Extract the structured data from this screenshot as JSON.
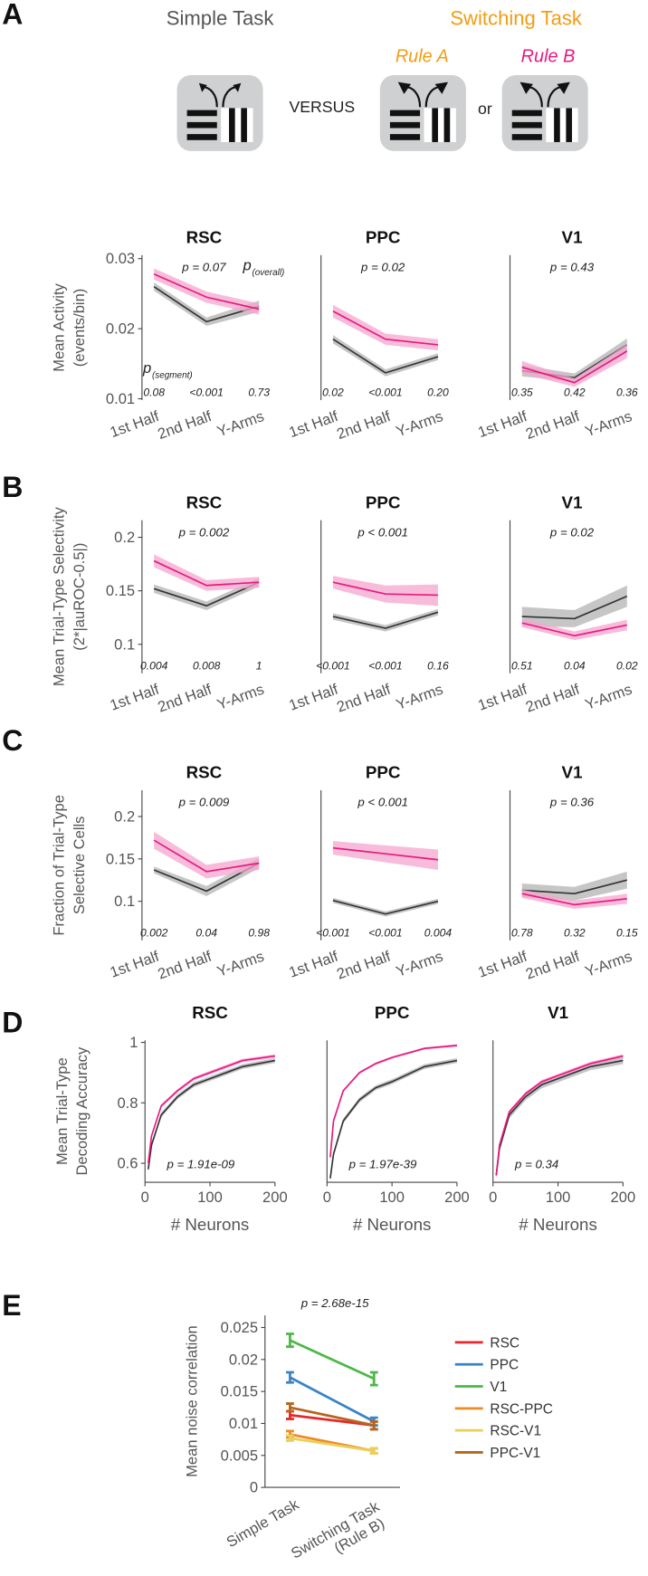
{
  "panel_labels": [
    "A",
    "B",
    "C",
    "D",
    "E"
  ],
  "schematic": {
    "simple": "Simple Task",
    "switching": "Switching Task",
    "rule_a": "Rule A",
    "rule_b": "Rule B",
    "versus": "VERSUS",
    "or": "or"
  },
  "chart_data": [
    {
      "type": "line",
      "title": "RSC",
      "ylabel": [
        "Mean Activity",
        "(events/bin)"
      ],
      "categories": [
        "1st Half",
        "2nd Half",
        "Y-Arms"
      ],
      "series": [
        {
          "color": "#333333",
          "band_color": "#b3b3b3",
          "values": [
            0.026,
            0.021,
            0.0232
          ],
          "error": [
            0.0006,
            0.0006,
            0.0008
          ]
        },
        {
          "color": "#e6197f",
          "band_color": "#f5a6cf",
          "values": [
            0.0278,
            0.0245,
            0.0228
          ],
          "error": [
            0.0008,
            0.0008,
            0.0008
          ]
        }
      ],
      "ylim": [
        0.0098,
        0.0305
      ],
      "yticks": [
        0.01,
        0.02,
        0.03
      ],
      "p_overall": "p = 0.07",
      "p_segments": [
        "0.08",
        "<0.001",
        "0.73"
      ],
      "annotations": [
        {
          "text": "p",
          "sub": "(overall)"
        },
        {
          "text": "p",
          "sub": "(segment)"
        }
      ]
    },
    {
      "type": "line",
      "title": "PPC",
      "categories": [
        "1st Half",
        "2nd Half",
        "Y-Arms"
      ],
      "series": [
        {
          "color": "#333333",
          "band_color": "#b3b3b3",
          "values": [
            0.0185,
            0.0137,
            0.016
          ],
          "error": [
            0.0006,
            0.0005,
            0.0005
          ]
        },
        {
          "color": "#e6197f",
          "band_color": "#f5a6cf",
          "values": [
            0.0225,
            0.0185,
            0.0177
          ],
          "error": [
            0.0009,
            0.0008,
            0.0008
          ]
        }
      ],
      "ylim": [
        0.0098,
        0.0305
      ],
      "p_overall": "p = 0.02",
      "p_segments": [
        "0.02",
        "<0.001",
        "0.20"
      ]
    },
    {
      "type": "line",
      "title": "V1",
      "categories": [
        "1st Half",
        "2nd Half",
        "Y-Arms"
      ],
      "series": [
        {
          "color": "#333333",
          "band_color": "#b3b3b3",
          "values": [
            0.014,
            0.013,
            0.0177
          ],
          "error": [
            0.0008,
            0.0006,
            0.0009
          ]
        },
        {
          "color": "#e6197f",
          "band_color": "#f5a6cf",
          "values": [
            0.0145,
            0.0123,
            0.0168
          ],
          "error": [
            0.0009,
            0.0006,
            0.001
          ]
        }
      ],
      "ylim": [
        0.0098,
        0.0305
      ],
      "p_overall": "p = 0.43",
      "p_segments": [
        "0.35",
        "0.42",
        "0.36"
      ]
    },
    {
      "type": "line",
      "title": "RSC",
      "ylabel": [
        "Mean Trial-Type Selectivity",
        "(2*|auROC-0.5|)"
      ],
      "categories": [
        "1st Half",
        "2nd Half",
        "Y-Arms"
      ],
      "series": [
        {
          "color": "#333333",
          "band_color": "#b3b3b3",
          "values": [
            0.152,
            0.136,
            0.158
          ],
          "error": [
            0.004,
            0.004,
            0.004
          ]
        },
        {
          "color": "#e6197f",
          "band_color": "#f5a6cf",
          "values": [
            0.178,
            0.155,
            0.158
          ],
          "error": [
            0.006,
            0.005,
            0.005
          ]
        }
      ],
      "ylim": [
        0.073,
        0.216
      ],
      "yticks": [
        0.1,
        0.15,
        0.2
      ],
      "p_overall": "p = 0.002",
      "p_segments": [
        "0.004",
        "0.008",
        "1"
      ]
    },
    {
      "type": "line",
      "title": "PPC",
      "categories": [
        "1st Half",
        "2nd Half",
        "Y-Arms"
      ],
      "series": [
        {
          "color": "#333333",
          "band_color": "#b3b3b3",
          "values": [
            0.126,
            0.115,
            0.13
          ],
          "error": [
            0.003,
            0.003,
            0.003
          ]
        },
        {
          "color": "#e6197f",
          "band_color": "#f5a6cf",
          "values": [
            0.158,
            0.147,
            0.146
          ],
          "error": [
            0.006,
            0.008,
            0.01
          ]
        }
      ],
      "ylim": [
        0.073,
        0.216
      ],
      "p_overall": "p < 0.001",
      "p_segments": [
        "<0.001",
        "<0.001",
        "0.16"
      ]
    },
    {
      "type": "line",
      "title": "V1",
      "categories": [
        "1st Half",
        "2nd Half",
        "Y-Arms"
      ],
      "series": [
        {
          "color": "#333333",
          "band_color": "#b3b3b3",
          "values": [
            0.126,
            0.124,
            0.145
          ],
          "error": [
            0.009,
            0.008,
            0.01
          ]
        },
        {
          "color": "#e6197f",
          "band_color": "#f5a6cf",
          "values": [
            0.12,
            0.108,
            0.118
          ],
          "error": [
            0.004,
            0.004,
            0.005
          ]
        }
      ],
      "ylim": [
        0.073,
        0.216
      ],
      "p_overall": "p = 0.02",
      "p_segments": [
        "0.51",
        "0.04",
        "0.02"
      ]
    },
    {
      "type": "line",
      "title": "RSC",
      "ylabel": [
        "Fraction of Trial-Type",
        "Selective Cells"
      ],
      "categories": [
        "1st Half",
        "2nd Half",
        "Y-Arms"
      ],
      "series": [
        {
          "color": "#333333",
          "band_color": "#b3b3b3",
          "values": [
            0.137,
            0.112,
            0.145
          ],
          "error": [
            0.004,
            0.006,
            0.006
          ]
        },
        {
          "color": "#e6197f",
          "band_color": "#f5a6cf",
          "values": [
            0.172,
            0.135,
            0.145
          ],
          "error": [
            0.01,
            0.008,
            0.008
          ]
        }
      ],
      "ylim": [
        0.054,
        0.231
      ],
      "yticks": [
        0.1,
        0.15,
        0.2
      ],
      "p_overall": "p = 0.009",
      "p_segments": [
        "0.002",
        "0.04",
        "0.98"
      ]
    },
    {
      "type": "line",
      "title": "PPC",
      "categories": [
        "1st Half",
        "2nd Half",
        "Y-Arms"
      ],
      "series": [
        {
          "color": "#333333",
          "band_color": "#b3b3b3",
          "values": [
            0.101,
            0.085,
            0.1
          ],
          "error": [
            0.003,
            0.003,
            0.003
          ]
        },
        {
          "color": "#e6197f",
          "band_color": "#f5a6cf",
          "values": [
            0.163,
            0.156,
            0.149
          ],
          "error": [
            0.008,
            0.01,
            0.012
          ]
        }
      ],
      "ylim": [
        0.054,
        0.231
      ],
      "p_overall": "p < 0.001",
      "p_segments": [
        "<0.001",
        "<0.001",
        "0.004"
      ]
    },
    {
      "type": "line",
      "title": "V1",
      "categories": [
        "1st Half",
        "2nd Half",
        "Y-Arms"
      ],
      "series": [
        {
          "color": "#333333",
          "band_color": "#b3b3b3",
          "values": [
            0.113,
            0.109,
            0.125
          ],
          "error": [
            0.008,
            0.008,
            0.01
          ]
        },
        {
          "color": "#e6197f",
          "band_color": "#f5a6cf",
          "values": [
            0.109,
            0.096,
            0.103
          ],
          "error": [
            0.005,
            0.005,
            0.006
          ]
        }
      ],
      "ylim": [
        0.054,
        0.231
      ],
      "p_overall": "p = 0.36",
      "p_segments": [
        "0.78",
        "0.32",
        "0.15"
      ]
    },
    {
      "type": "line",
      "title": "RSC",
      "ylabel": [
        "Mean Trial-Type",
        "Decoding Accuracy"
      ],
      "xlabel": "# Neurons",
      "x": [
        5,
        10,
        25,
        50,
        75,
        100,
        150,
        200
      ],
      "series": [
        {
          "color": "#333333",
          "band_color": "#b3b3b3",
          "values": [
            0.58,
            0.66,
            0.76,
            0.82,
            0.86,
            0.88,
            0.92,
            0.94
          ],
          "error": [
            0.008,
            0.008,
            0.008,
            0.008,
            0.008,
            0.008,
            0.008,
            0.008
          ]
        },
        {
          "color": "#e6197f",
          "band_color": "#f5a6cf",
          "values": [
            0.6,
            0.69,
            0.79,
            0.84,
            0.88,
            0.9,
            0.94,
            0.955
          ],
          "error": [
            0.006,
            0.006,
            0.006,
            0.006,
            0.006,
            0.006,
            0.006,
            0.006
          ]
        }
      ],
      "xlim": [
        0,
        200
      ],
      "xticks": [
        0,
        100,
        200
      ],
      "ylim": [
        0.537,
        1.007
      ],
      "yticks": [
        0.6,
        0.8,
        1
      ],
      "p_overall": "p = 1.91e-09"
    },
    {
      "type": "line",
      "title": "PPC",
      "xlabel": "# Neurons",
      "x": [
        5,
        10,
        25,
        50,
        75,
        100,
        150,
        200
      ],
      "series": [
        {
          "color": "#333333",
          "band_color": "#b3b3b3",
          "values": [
            0.55,
            0.63,
            0.74,
            0.81,
            0.85,
            0.87,
            0.92,
            0.94
          ],
          "error": [
            0.008,
            0.008,
            0.008,
            0.008,
            0.008,
            0.008,
            0.008,
            0.008
          ]
        },
        {
          "color": "#e6197f",
          "band_color": "#f5a6cf",
          "values": [
            0.62,
            0.74,
            0.84,
            0.9,
            0.93,
            0.95,
            0.98,
            0.99
          ],
          "error": [
            0.004,
            0.004,
            0.004,
            0.004,
            0.004,
            0.004,
            0.004,
            0.004
          ]
        }
      ],
      "xlim": [
        0,
        200
      ],
      "xticks": [
        0,
        100,
        200
      ],
      "ylim": [
        0.537,
        1.007
      ],
      "p_overall": "p = 1.97e-39"
    },
    {
      "type": "line",
      "title": "V1",
      "xlabel": "# Neurons",
      "x": [
        5,
        10,
        25,
        50,
        75,
        100,
        150,
        200
      ],
      "series": [
        {
          "color": "#333333",
          "band_color": "#b3b3b3",
          "values": [
            0.56,
            0.65,
            0.76,
            0.82,
            0.86,
            0.88,
            0.92,
            0.94
          ],
          "error": [
            0.012,
            0.012,
            0.012,
            0.012,
            0.012,
            0.012,
            0.012,
            0.012
          ]
        },
        {
          "color": "#e6197f",
          "band_color": "#f5a6cf",
          "values": [
            0.56,
            0.66,
            0.77,
            0.83,
            0.87,
            0.89,
            0.93,
            0.955
          ],
          "error": [
            0.006,
            0.006,
            0.006,
            0.006,
            0.006,
            0.006,
            0.006,
            0.006
          ]
        }
      ],
      "xlim": [
        0,
        200
      ],
      "xticks": [
        0,
        100,
        200
      ],
      "ylim": [
        0.537,
        1.007
      ],
      "p_overall": "p = 0.34"
    },
    {
      "type": "errorbar",
      "ylabel": [
        "Mean noise correlation"
      ],
      "categories": [
        "Simple Task",
        "Switching Task (Rule B)"
      ],
      "series": [
        {
          "name": "RSC",
          "color": "#e8262a",
          "values": [
            0.0113,
            0.0097
          ],
          "error": [
            0.0006,
            0.0006
          ]
        },
        {
          "name": "PPC",
          "color": "#3a84c5",
          "values": [
            0.0172,
            0.0103
          ],
          "error": [
            0.0008,
            0.0006
          ]
        },
        {
          "name": "V1",
          "color": "#4cb847",
          "values": [
            0.023,
            0.017
          ],
          "error": [
            0.001,
            0.001
          ]
        },
        {
          "name": "RSC-PPC",
          "color": "#f08a24",
          "values": [
            0.0083,
            0.0057
          ],
          "error": [
            0.0005,
            0.0004
          ]
        },
        {
          "name": "RSC-V1",
          "color": "#e8d05a",
          "values": [
            0.0077,
            0.0057
          ],
          "error": [
            0.0004,
            0.0004
          ]
        },
        {
          "name": "PPC-V1",
          "color": "#b5651d",
          "values": [
            0.0125,
            0.0097
          ],
          "error": [
            0.0006,
            0.0006
          ]
        }
      ],
      "ylim": [
        0,
        0.0269
      ],
      "yticks": [
        0,
        0.005,
        0.01,
        0.015,
        0.02,
        0.025
      ],
      "p_overall": "p = 2.68e-15",
      "legend": "right"
    }
  ]
}
